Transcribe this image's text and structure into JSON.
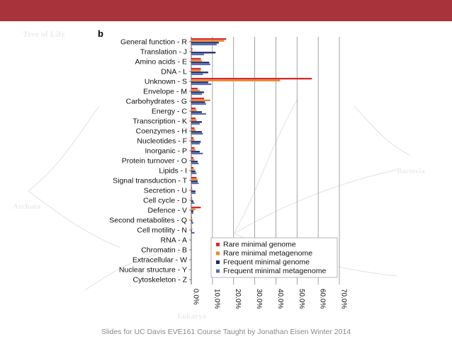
{
  "panel_letter": "b",
  "watermark": {
    "title": "Tree of Life",
    "labels": [
      "Bacteria",
      "Archaea",
      "Eukarya"
    ]
  },
  "footer": "Slides for UC Davis EVE161 Course Taught by Jonathan Eisen Winter 2014",
  "colors": {
    "top_bar": "#a8333a",
    "rare_genome": "#d62b2b",
    "rare_metagenome": "#e8862a",
    "frequent_genome": "#1f2a6b",
    "frequent_metagenome": "#5470b4",
    "gridline": "#8c8c8c"
  },
  "chart_data": {
    "type": "bar",
    "orientation": "horizontal",
    "title": "",
    "xlabel": "",
    "ylabel": "",
    "xlim": [
      0,
      70
    ],
    "x_ticks": [
      "0.0%",
      "10.0%",
      "20.0%",
      "30.0%",
      "40.0%",
      "50.0%",
      "60.0%",
      "70.0%"
    ],
    "grid": true,
    "legend_position": "bottom-right",
    "categories": [
      "General function - R",
      "Translation - J",
      "Amino acids - E",
      "DNA - L",
      "Unknown - S",
      "Envelope - M",
      "Carbohydrates - G",
      "Energy - C",
      "Transcription - K",
      "Coenzymes - H",
      "Nucleotides - F",
      "Inorganic - P",
      "Protein turnover - O",
      "Lipids - I",
      "Signal transduction - T",
      "Secretion - U",
      "Cell cycle - D",
      "Defence - V",
      "Second metabolites - Q",
      "Cell motility - N",
      "RNA - A",
      "Chromatin - B",
      "Extracellular - W",
      "Nuclear structure - Y",
      "Cytoskeleton - Z"
    ],
    "series": [
      {
        "name": "Rare minimal genome",
        "values": [
          16.5,
          0.5,
          4.5,
          4.5,
          57.0,
          3.0,
          6.0,
          2.0,
          2.0,
          1.5,
          1.0,
          1.5,
          1.0,
          1.0,
          2.5,
          0.3,
          0.3,
          4.5,
          0.3,
          0.2,
          0,
          0,
          0,
          0,
          0
        ]
      },
      {
        "name": "Rare minimal metagenome",
        "values": [
          15.5,
          0.5,
          5.0,
          4.5,
          42.0,
          4.0,
          9.0,
          2.5,
          2.5,
          2.0,
          1.5,
          2.0,
          1.5,
          1.5,
          3.0,
          0.5,
          0.5,
          2.0,
          0.5,
          0.5,
          0,
          0,
          0,
          0,
          0
        ]
      },
      {
        "name": "Frequent minimal genome",
        "values": [
          13.0,
          11.5,
          8.5,
          8.0,
          8.0,
          6.0,
          6.5,
          5.0,
          5.0,
          5.0,
          4.5,
          4.0,
          3.0,
          2.0,
          3.0,
          2.0,
          1.0,
          1.0,
          0.5,
          0.3,
          0,
          0,
          0,
          0,
          0
        ]
      },
      {
        "name": "Frequent minimal metagenome",
        "values": [
          12.0,
          6.0,
          9.0,
          5.5,
          9.5,
          5.0,
          7.0,
          7.0,
          4.0,
          5.5,
          4.0,
          5.5,
          3.5,
          2.5,
          3.5,
          2.0,
          1.5,
          1.0,
          1.0,
          1.5,
          0,
          0,
          0,
          0,
          0
        ]
      }
    ]
  }
}
